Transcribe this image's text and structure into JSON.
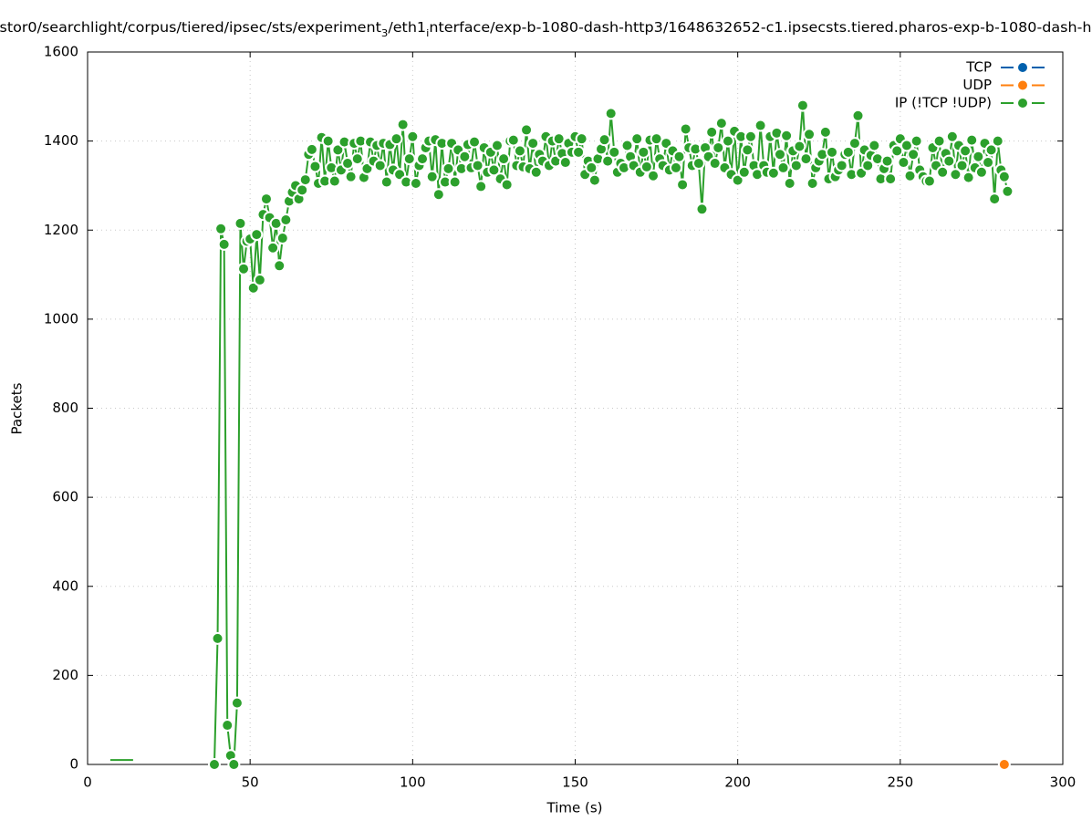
{
  "chart_data": {
    "type": "line",
    "title": [
      {
        "text": "stor0/searchlight/corpus/tiered/ipsec/sts/experiment"
      },
      {
        "text": "3",
        "sub": true
      },
      {
        "text": "/eth1"
      },
      {
        "text": "i",
        "sub": true
      },
      {
        "text": "nterface/exp-b-1080-dash-http3/1648632652-c1.ipsecsts.tiered.pharos-exp-b-1080-dash-h"
      }
    ],
    "xlabel": "Time (s)",
    "ylabel": "Packets",
    "xlim": [
      0,
      300
    ],
    "xticks": [
      0,
      50,
      100,
      150,
      200,
      250,
      300
    ],
    "ylim": [
      0,
      1600
    ],
    "yticks": [
      0,
      200,
      400,
      600,
      800,
      1000,
      1200,
      1400,
      1600
    ],
    "grid": true,
    "legend": "upper right",
    "series": [
      {
        "name": "TCP",
        "color": "#0060ad",
        "x": [],
        "values": []
      },
      {
        "name": "UDP",
        "color": "#ff7f0e",
        "x": [
          282
        ],
        "values": [
          0
        ]
      },
      {
        "name": "IP (!TCP  !UDP)",
        "color": "#2ca02c",
        "x": [
          7,
          8,
          9,
          10,
          11,
          12,
          13,
          14,
          26,
          39,
          40,
          41,
          42,
          43,
          44,
          45,
          46,
          47,
          48,
          49,
          50,
          51,
          52,
          53,
          54,
          55,
          56,
          57,
          58,
          59,
          60,
          61,
          62,
          63,
          64,
          65,
          66,
          67,
          68,
          69,
          70,
          71,
          72,
          73,
          74,
          75,
          76,
          77,
          78,
          79,
          80,
          81,
          82,
          83,
          84,
          85,
          86,
          87,
          88,
          89,
          90,
          91,
          92,
          93,
          94,
          95,
          96,
          97,
          98,
          99,
          100,
          101,
          102,
          103,
          104,
          105,
          106,
          107,
          108,
          109,
          110,
          111,
          112,
          113,
          114,
          115,
          116,
          117,
          118,
          119,
          120,
          121,
          122,
          123,
          124,
          125,
          126,
          127,
          128,
          129,
          130,
          131,
          132,
          133,
          134,
          135,
          136,
          137,
          138,
          139,
          140,
          141,
          142,
          143,
          144,
          145,
          146,
          147,
          148,
          149,
          150,
          151,
          152,
          153,
          154,
          155,
          156,
          157,
          158,
          159,
          160,
          161,
          162,
          163,
          164,
          165,
          166,
          167,
          168,
          169,
          170,
          171,
          172,
          173,
          174,
          175,
          176,
          177,
          178,
          179,
          180,
          181,
          182,
          183,
          184,
          185,
          186,
          187,
          188,
          189,
          190,
          191,
          192,
          193,
          194,
          195,
          196,
          197,
          198,
          199,
          200,
          201,
          202,
          203,
          204,
          205,
          206,
          207,
          208,
          209,
          210,
          211,
          212,
          213,
          214,
          215,
          216,
          217,
          218,
          219,
          220,
          221,
          222,
          223,
          224,
          225,
          226,
          227,
          228,
          229,
          230,
          231,
          232,
          233,
          234,
          235,
          236,
          237,
          238,
          239,
          240,
          241,
          242,
          243,
          244,
          245,
          246,
          247,
          248,
          249,
          250,
          251,
          252,
          253,
          254,
          255,
          256,
          257,
          258,
          259,
          260,
          261,
          262,
          263,
          264,
          265,
          266,
          267,
          268,
          269,
          270,
          271,
          272,
          273,
          274,
          275,
          276,
          277,
          278,
          279,
          280,
          281,
          282,
          283
        ],
        "values": [
          10,
          10,
          10,
          10,
          10,
          10,
          10,
          10,
          null,
          0,
          283,
          1203,
          1168,
          88,
          20,
          0,
          138,
          1215,
          1113,
          1175,
          1180,
          1070,
          1190,
          1088,
          1235,
          1270,
          1228,
          1160,
          1215,
          1120,
          1182,
          1223,
          1265,
          1285,
          1300,
          1270,
          1290,
          1313,
          1370,
          1381,
          1343,
          1305,
          1408,
          1310,
          1400,
          1340,
          1310,
          1380,
          1335,
          1398,
          1350,
          1320,
          1395,
          1360,
          1400,
          1318,
          1338,
          1398,
          1355,
          1390,
          1345,
          1395,
          1308,
          1392,
          1335,
          1405,
          1325,
          1437,
          1308,
          1360,
          1410,
          1305,
          1345,
          1360,
          1385,
          1400,
          1320,
          1403,
          1280,
          1395,
          1308,
          1338,
          1395,
          1308,
          1380,
          1338,
          1365,
          1392,
          1340,
          1398,
          1345,
          1298,
          1385,
          1330,
          1375,
          1335,
          1390,
          1315,
          1360,
          1302,
          1400,
          1402,
          1345,
          1378,
          1342,
          1425,
          1338,
          1395,
          1330,
          1370,
          1355,
          1410,
          1345,
          1400,
          1355,
          1405,
          1372,
          1352,
          1395,
          1375,
          1410,
          1375,
          1405,
          1325,
          1355,
          1340,
          1312,
          1360,
          1382,
          1403,
          1355,
          1462,
          1375,
          1330,
          1350,
          1340,
          1390,
          1365,
          1345,
          1405,
          1330,
          1375,
          1342,
          1402,
          1322,
          1405,
          1360,
          1345,
          1395,
          1335,
          1378,
          1340,
          1365,
          1302,
          1427,
          1385,
          1345,
          1382,
          1350,
          1247,
          1385,
          1365,
          1420,
          1350,
          1385,
          1440,
          1340,
          1400,
          1325,
          1422,
          1312,
          1410,
          1330,
          1380,
          1410,
          1345,
          1325,
          1435,
          1345,
          1330,
          1410,
          1328,
          1418,
          1370,
          1340,
          1412,
          1305,
          1378,
          1345,
          1388,
          1480,
          1360,
          1415,
          1305,
          1340,
          1355,
          1370,
          1420,
          1315,
          1375,
          1320,
          1335,
          1345,
          1370,
          1375,
          1325,
          1395,
          1457,
          1328,
          1380,
          1345,
          1368,
          1390,
          1360,
          1315,
          1338,
          1355,
          1315,
          1390,
          1378,
          1405,
          1352,
          1390,
          1322,
          1370,
          1400,
          1335,
          1320,
          1310,
          1310,
          1385,
          1345,
          1400,
          1330,
          1372,
          1355,
          1410,
          1325,
          1390,
          1345,
          1378,
          1318,
          1402,
          1340,
          1365,
          1330,
          1395,
          1352,
          1380,
          1270,
          1400,
          1335,
          1320,
          1287
        ]
      }
    ]
  }
}
